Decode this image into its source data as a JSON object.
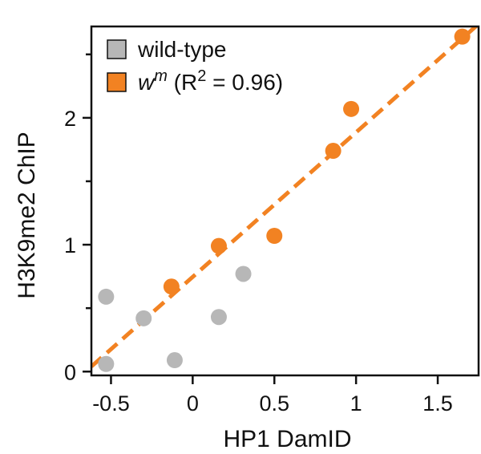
{
  "chart_data": {
    "type": "scatter",
    "xlabel": "HP1 DamID",
    "ylabel": "H3K9me2 ChIP",
    "xlim": [
      -0.62,
      1.75
    ],
    "ylim": [
      -0.03,
      2.72
    ],
    "x_ticks": [
      -0.5,
      0,
      0.5,
      1,
      1.5
    ],
    "x_tick_labels": [
      "-0.5",
      "0",
      "0.5",
      "1",
      "1.5"
    ],
    "y_ticks": [
      0,
      1,
      2
    ],
    "y_tick_labels": [
      "0",
      "1",
      "2"
    ],
    "y_minor_ticks": [
      0.5,
      1.5,
      2.5
    ],
    "grid": false,
    "legend_position": "top-left",
    "series": [
      {
        "name": "wild-type",
        "color": "#b7b7b7",
        "marker": "circle",
        "points": [
          {
            "x": -0.53,
            "y": 0.59
          },
          {
            "x": -0.53,
            "y": 0.06
          },
          {
            "x": -0.3,
            "y": 0.42
          },
          {
            "x": -0.11,
            "y": 0.09
          },
          {
            "x": 0.16,
            "y": 0.43
          },
          {
            "x": 0.31,
            "y": 0.77
          }
        ]
      },
      {
        "name_prefix": "w",
        "name_superscript": "m",
        "name_suffix": " (R",
        "name_suffix_sup": "2",
        "name_suffix_end": " = 0.96)",
        "color": "#f28222",
        "marker": "circle",
        "points": [
          {
            "x": -0.13,
            "y": 0.67
          },
          {
            "x": 0.16,
            "y": 0.99
          },
          {
            "x": 0.5,
            "y": 1.07
          },
          {
            "x": 0.86,
            "y": 1.74
          },
          {
            "x": 0.97,
            "y": 2.07
          },
          {
            "x": 1.65,
            "y": 2.64
          }
        ],
        "fit_line": {
          "style": "dashed",
          "x": [
            -0.62,
            1.75
          ],
          "y": [
            0.04,
            2.74
          ]
        }
      }
    ]
  }
}
